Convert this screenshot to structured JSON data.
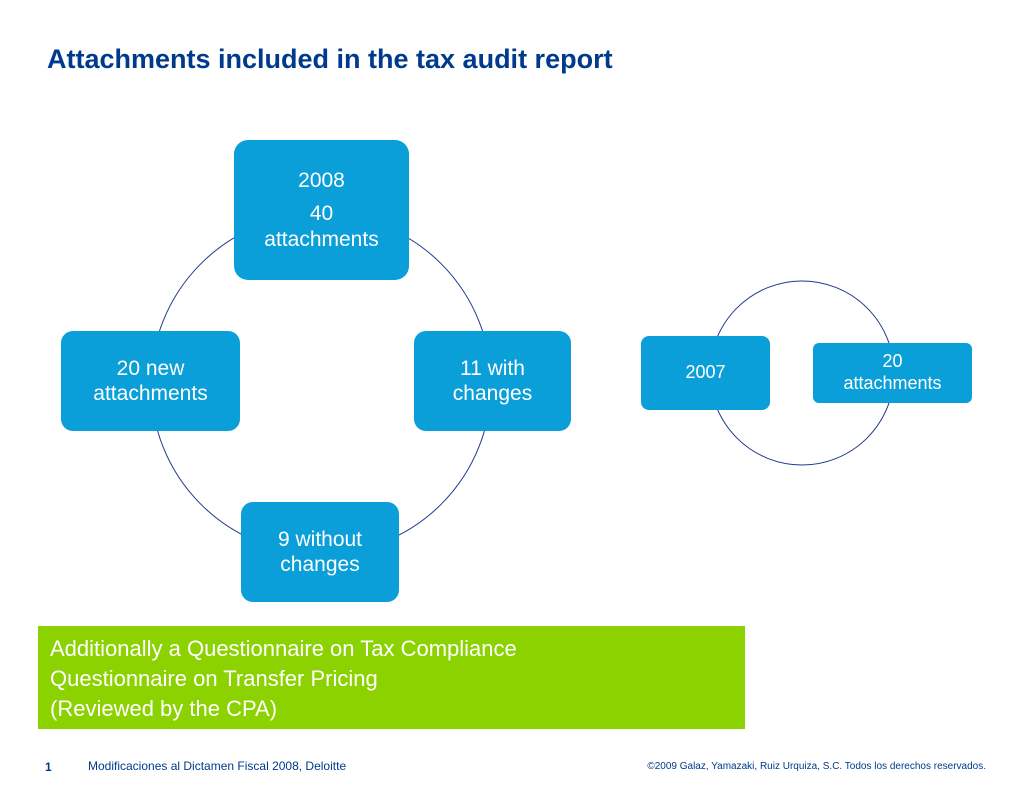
{
  "title": "Attachments included in the tax audit report",
  "cycle_2008": {
    "center": {
      "year": "2008",
      "count": "40",
      "unit": "attachments"
    },
    "right": {
      "line1": "11 with",
      "line2": "changes"
    },
    "bottom": {
      "line1": "9 without",
      "line2": "changes"
    },
    "left": {
      "line1": "20 new",
      "line2": "attachments"
    }
  },
  "cycle_2007": {
    "year": "2007",
    "count": "20",
    "unit": "attachments"
  },
  "note": {
    "line1": "Additionally a Questionnaire on Tax Compliance",
    "line2": "Questionnaire on Transfer Pricing",
    "line3": "(Reviewed by the CPA)"
  },
  "footer": {
    "page_number": "1",
    "source": "Modificaciones al Dictamen Fiscal 2008, Deloitte",
    "copyright": "©2009 Galaz, Yamazaki, Ruiz Urquiza, S.C. Todos los derechos reservados."
  },
  "colors": {
    "box": "#0a9fd8",
    "note": "#8cd200",
    "title": "#003a8c",
    "ring": "#1f3a8c"
  }
}
